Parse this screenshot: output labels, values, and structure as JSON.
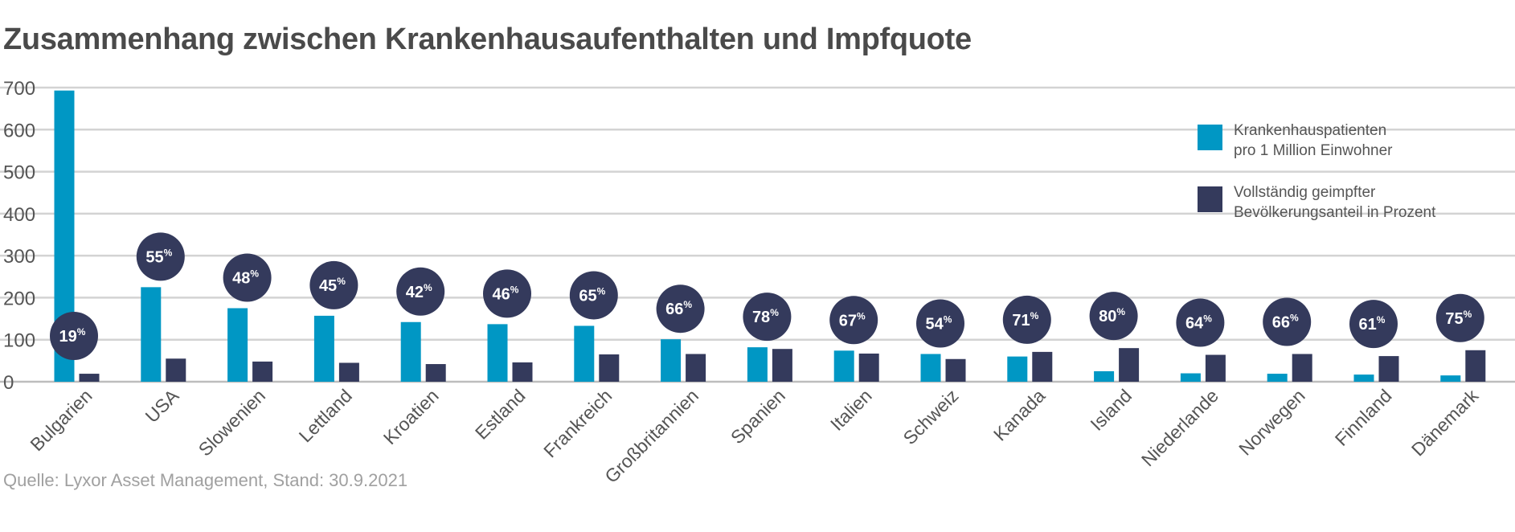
{
  "title": "Zusammenhang zwischen Krankenhausaufenthalten und Impfquote",
  "source": "Quelle: Lyxor Asset Management, Stand: 30.9.2021",
  "legend": [
    {
      "label": "Krankenhauspatienten\npro 1 Million Einwohner",
      "color": "#0097c4"
    },
    {
      "label": "Vollständig geimpfter\nBevölkerungsanteil in Prozent",
      "color": "#343a5c"
    }
  ],
  "chart_data": {
    "type": "bar",
    "title": "Zusammenhang zwischen Krankenhausaufenthalten und Impfquote",
    "xlabel": "",
    "ylabel": "",
    "ylim": [
      0,
      700
    ],
    "yticks": [
      0,
      100,
      200,
      300,
      400,
      500,
      600,
      700
    ],
    "grid": true,
    "legend_position": "top-right",
    "categories": [
      "Bulgarien",
      "USA",
      "Slowenien",
      "Lettland",
      "Kroatien",
      "Estland",
      "Frankreich",
      "Großbritannien",
      "Spanien",
      "Italien",
      "Schweiz",
      "Kanada",
      "Island",
      "Niederlande",
      "Norwegen",
      "Finnland",
      "Dänemark"
    ],
    "series": [
      {
        "name": "Krankenhauspatienten pro 1 Million Einwohner",
        "color": "#0097c4",
        "values": [
          693,
          225,
          175,
          157,
          142,
          137,
          133,
          101,
          82,
          74,
          66,
          60,
          25,
          20,
          19,
          17,
          15
        ]
      },
      {
        "name": "Vollständig geimpfter Bevölkerungsanteil in Prozent",
        "color": "#343a5c",
        "values": [
          19,
          55,
          48,
          45,
          42,
          46,
          65,
          66,
          78,
          67,
          54,
          71,
          80,
          64,
          66,
          61,
          75
        ]
      }
    ],
    "annotation_unit": "%",
    "annotations": [
      "19",
      "55",
      "48",
      "45",
      "42",
      "46",
      "65",
      "66",
      "78",
      "67",
      "54",
      "71",
      "80",
      "64",
      "66",
      "61",
      "75"
    ]
  }
}
